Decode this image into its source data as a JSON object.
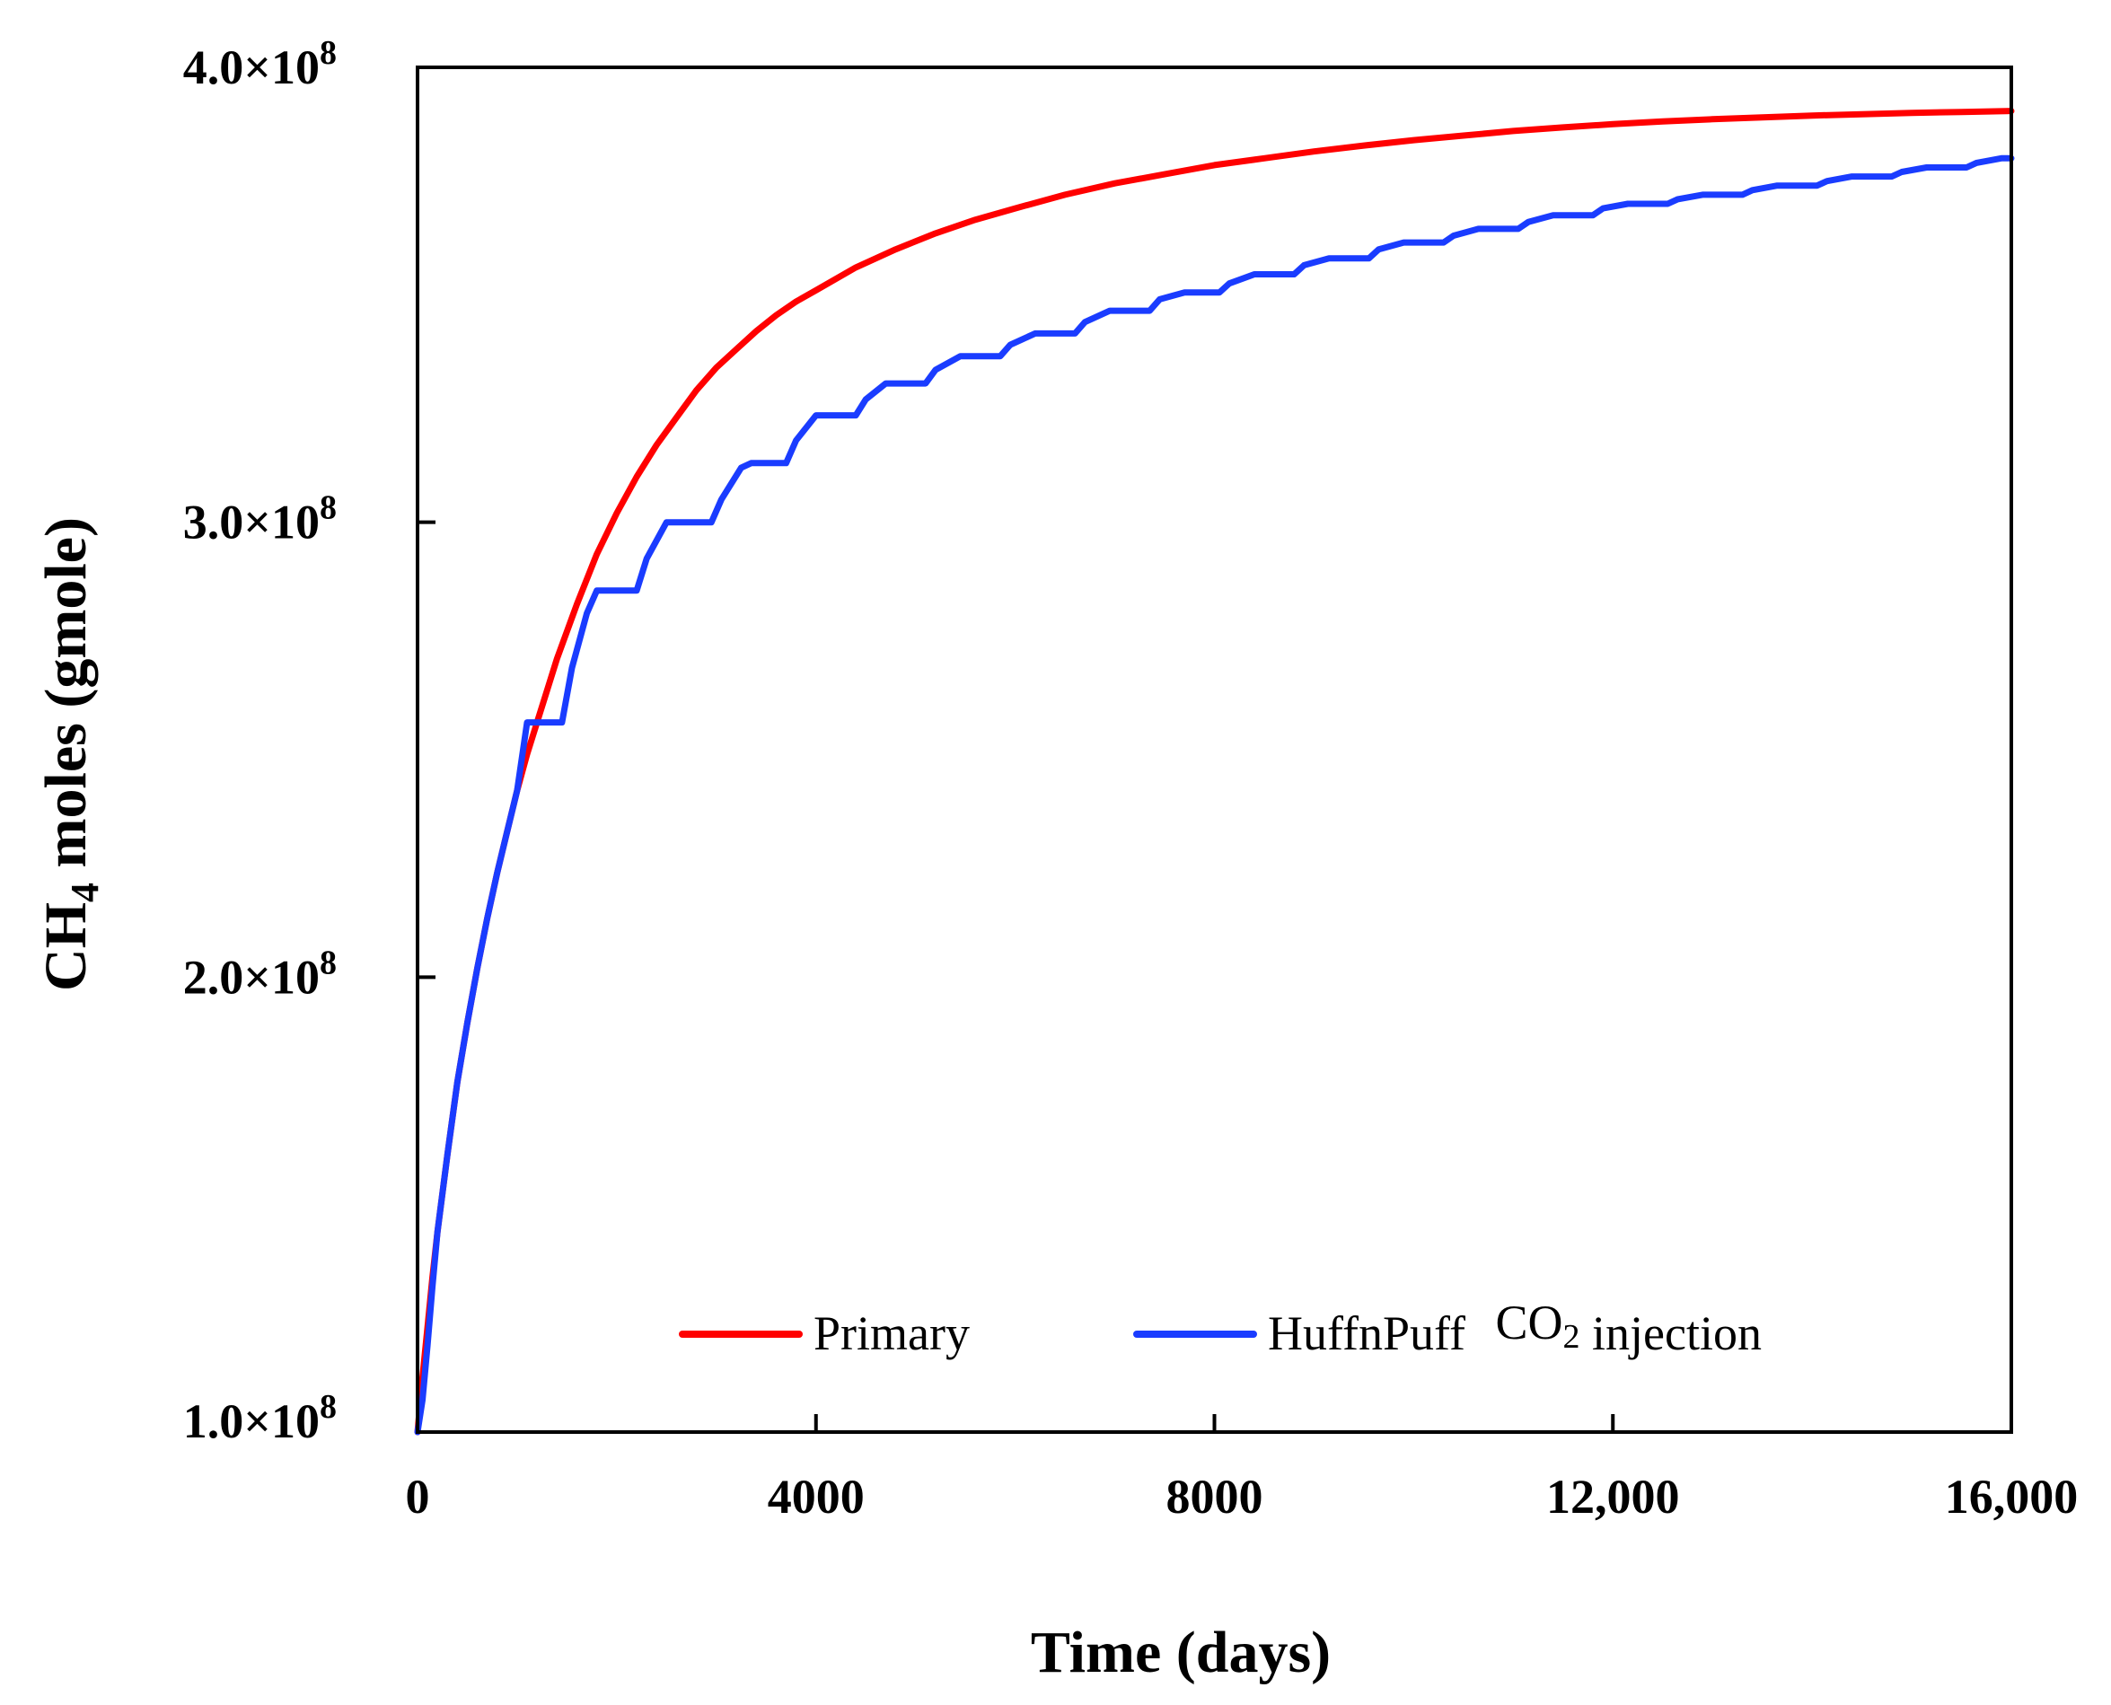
{
  "chart_data": {
    "type": "line",
    "title": "",
    "xlabel": "Time (days)",
    "ylabel": {
      "prefix": "CH",
      "subscript": "4",
      "suffix": " moles (gmole)"
    },
    "xlim": [
      0,
      16000
    ],
    "ylim": [
      100000000,
      400000000
    ],
    "x_ticks": [
      0,
      4000,
      8000,
      12000,
      16000
    ],
    "x_tick_labels": [
      "0",
      "4000",
      "8000",
      "12,000",
      "16,000"
    ],
    "y_ticks": [
      100000000,
      200000000,
      300000000,
      400000000
    ],
    "y_tick_labels": [
      {
        "mantissa": "1.0×10",
        "exp": "8"
      },
      {
        "mantissa": "2.0×10",
        "exp": "8"
      },
      {
        "mantissa": "3.0×10",
        "exp": "8"
      },
      {
        "mantissa": "4.0×10",
        "exp": "8"
      }
    ],
    "grid": false,
    "legend_position": "bottom",
    "series": [
      {
        "name": "Primary",
        "color": "#ff0000",
        "x": [
          0,
          50,
          100,
          150,
          200,
          300,
          400,
          500,
          600,
          700,
          800,
          900,
          1000,
          1100,
          1200,
          1400,
          1600,
          1800,
          2000,
          2200,
          2400,
          2600,
          2800,
          3000,
          3200,
          3400,
          3600,
          3800,
          4000,
          4400,
          4800,
          5200,
          5600,
          6000,
          6500,
          7000,
          7500,
          8000,
          8500,
          9000,
          9500,
          10000,
          10500,
          11000,
          11500,
          12000,
          12500,
          13000,
          13500,
          14000,
          14500,
          15000,
          15500,
          16000
        ],
        "values": [
          100000000,
          112000000,
          123000000,
          134000000,
          144000000,
          161000000,
          177000000,
          190000000,
          202000000,
          213000000,
          223000000,
          232000000,
          241000000,
          249000000,
          256000000,
          270000000,
          282000000,
          293000000,
          302000000,
          310000000,
          317000000,
          323000000,
          329000000,
          334000000,
          338000000,
          342000000,
          345500000,
          348500000,
          351000000,
          356000000,
          360000000,
          363500000,
          366500000,
          369000000,
          372000000,
          374500000,
          376500000,
          378500000,
          380000000,
          381500000,
          382800000,
          384000000,
          385000000,
          386000000,
          386800000,
          387500000,
          388100000,
          388600000,
          389000000,
          389400000,
          389700000,
          390000000,
          390200000,
          390400000
        ]
      },
      {
        "name": "HuffnPuff CO2 injection",
        "label_parts": [
          "HuffnPuff ",
          "CO",
          "2",
          " injection"
        ],
        "color": "#1a3cff",
        "x": [
          0,
          50,
          100,
          150,
          200,
          300,
          400,
          500,
          600,
          700,
          800,
          900,
          1000,
          1100,
          1450,
          1550,
          1700,
          1800,
          2200,
          2300,
          2500,
          2600,
          2950,
          3050,
          3250,
          3350,
          3700,
          3800,
          4000,
          4100,
          4400,
          4500,
          4700,
          4800,
          5100,
          5200,
          5450,
          5550,
          5850,
          5950,
          6200,
          6300,
          6600,
          6700,
          6950,
          7050,
          7350,
          7450,
          7700,
          7800,
          8050,
          8150,
          8400,
          8500,
          8800,
          8900,
          9150,
          9250,
          9550,
          9650,
          9900,
          10000,
          10300,
          10400,
          10650,
          10750,
          11050,
          11150,
          11400,
          11500,
          11800,
          11900,
          12150,
          12250,
          12550,
          12650,
          12900,
          13000,
          13300,
          13400,
          13650,
          13750,
          14050,
          14150,
          14400,
          14500,
          14800,
          14900,
          15150,
          15250,
          15550,
          15650,
          15900,
          16000
        ],
        "values": [
          100000000,
          107000000,
          119000000,
          132000000,
          144000000,
          161000000,
          177000000,
          190000000,
          202000000,
          213000000,
          223000000,
          232000000,
          241000000,
          256000000,
          256000000,
          268000000,
          280000000,
          285000000,
          285000000,
          292000000,
          300000000,
          300000000,
          300000000,
          305000000,
          312000000,
          313000000,
          313000000,
          318000000,
          323500000,
          323500000,
          323500000,
          327000000,
          330500000,
          330500000,
          330500000,
          333500000,
          336500000,
          336500000,
          336500000,
          339000000,
          341500000,
          341500000,
          341500000,
          344000000,
          346500000,
          346500000,
          346500000,
          349000000,
          350500000,
          350500000,
          350500000,
          352500000,
          354500000,
          354500000,
          354500000,
          356500000,
          358000000,
          358000000,
          358000000,
          360000000,
          361500000,
          361500000,
          361500000,
          363000000,
          364500000,
          364500000,
          364500000,
          366000000,
          367500000,
          367500000,
          367500000,
          369000000,
          370000000,
          370000000,
          370000000,
          371000000,
          372000000,
          372000000,
          372000000,
          373000000,
          374000000,
          374000000,
          374000000,
          375000000,
          376000000,
          376000000,
          376000000,
          377000000,
          378000000,
          378000000,
          378000000,
          379000000,
          380000000,
          380000000
        ]
      }
    ]
  }
}
